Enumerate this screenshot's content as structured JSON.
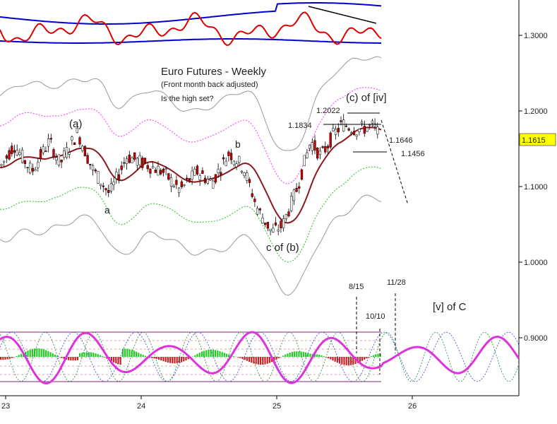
{
  "chart_data": {
    "type": "candlestick",
    "title": "Euro Futures - Weekly",
    "subtitle": "(Front month back adjusted)",
    "question": "Is the high set?",
    "last_price": "1.1615",
    "y_ticks": [
      "1.3000",
      "1.2000",
      "1.1000",
      "1.0000",
      "0.9000"
    ],
    "x_ticks": [
      "23",
      "24",
      "25",
      "26"
    ],
    "wave_labels": {
      "a_paren": "(a)",
      "a": "a",
      "b": "b",
      "c_of_b": "c of (b)",
      "c_of_iv": "(c) of [iv]",
      "v_of_c": "[v] of C"
    },
    "price_levels": [
      "1.2022",
      "1.1834",
      "1.1646",
      "1.1456"
    ],
    "cycle_dates": [
      "8/15",
      "10/10",
      "11/28"
    ],
    "colors": {
      "ma": "#8b1a1a",
      "upper_band": "#ff33ff",
      "lower_band": "#22bb22",
      "envelope": "#999999",
      "oscillator": "#dd0000",
      "oscillator_bands": "#0000cc",
      "cycle": "#dd33dd",
      "hist_up": "#22cc22",
      "hist_down": "#cc2222",
      "price_box": "#ffff00"
    }
  }
}
